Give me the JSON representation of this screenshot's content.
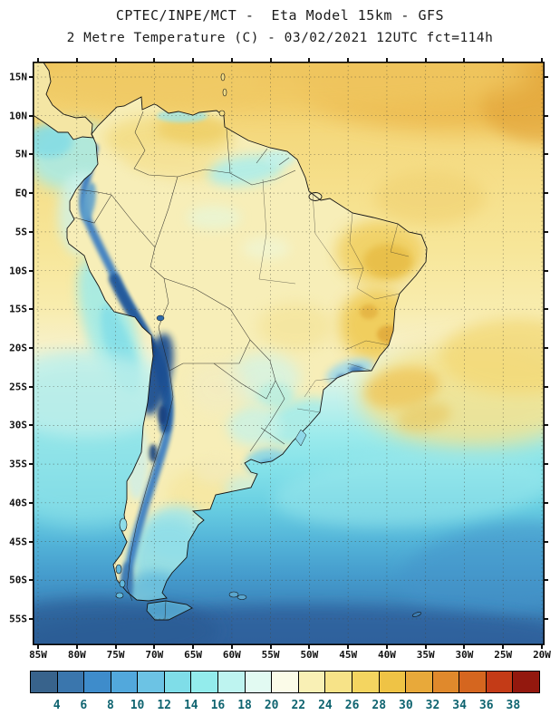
{
  "header": {
    "line1": "CPTEC/INPE/MCT -  Eta Model 15km - GFS",
    "line2": "2 Metre Temperature (C) - 03/02/2021 12UTC fct=114h"
  },
  "axes": {
    "lat_labels": [
      "15N",
      "10N",
      "5N",
      "EQ",
      "5S",
      "10S",
      "15S",
      "20S",
      "25S",
      "30S",
      "35S",
      "40S",
      "45S",
      "50S",
      "55S"
    ],
    "lon_labels": [
      "85W",
      "80W",
      "75W",
      "70W",
      "65W",
      "60W",
      "55W",
      "50W",
      "45W",
      "40W",
      "35W",
      "30W",
      "25W",
      "20W"
    ]
  },
  "colorbar": {
    "tick_labels": [
      "4",
      "6",
      "8",
      "10",
      "12",
      "14",
      "16",
      "18",
      "20",
      "22",
      "24",
      "26",
      "28",
      "30",
      "32",
      "34",
      "36",
      "38"
    ],
    "colors": [
      "#38638c",
      "#3a76ad",
      "#3e8ccb",
      "#52a8dc",
      "#6cc3e4",
      "#7fdde8",
      "#93ecec",
      "#bef4f0",
      "#e2faf2",
      "#fbfbe8",
      "#f9f0b5",
      "#f7e388",
      "#f4d560",
      "#efc345",
      "#e8a93a",
      "#e0892c",
      "#d5661f",
      "#c43b17",
      "#93180e"
    ],
    "label_color": "#0f6470"
  }
}
